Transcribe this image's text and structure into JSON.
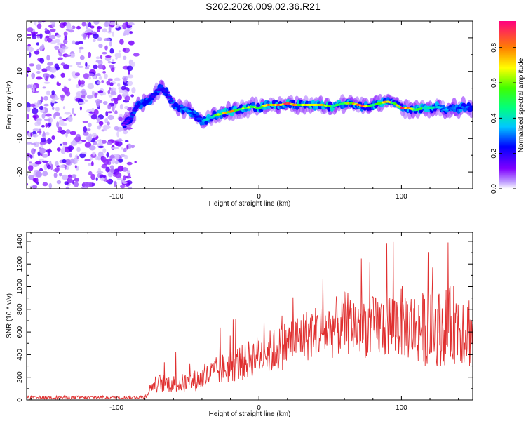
{
  "title": "S202.2026.009.02.36.R21",
  "chart_data": [
    {
      "type": "heatmap",
      "xlabel": "Height of straight line (km)",
      "ylabel": "Frequency (Hz)",
      "xlim": [
        -163,
        150
      ],
      "ylim": [
        -25,
        25
      ],
      "xticks": [
        -100,
        0,
        100
      ],
      "xtick_labels": [
        "-100",
        "0",
        "100"
      ],
      "yticks": [
        20,
        10,
        0,
        -10,
        -20
      ],
      "ytick_labels": [
        "20",
        "10",
        "0",
        "-10",
        "-20"
      ],
      "colorbar": {
        "label": "Normalized spectral amplitude",
        "range": [
          0,
          0.95
        ],
        "ticks": [
          0,
          0.2,
          0.4,
          0.6,
          0.8
        ],
        "tick_labels": [
          "0.0",
          "0.2",
          "0.4",
          "0.6",
          "0.8"
        ]
      },
      "ridge": {
        "x": [
          -95,
          -90,
          -85,
          -80,
          -75,
          -70,
          -65,
          -60,
          -55,
          -50,
          -45,
          -40,
          -35,
          -30,
          -25,
          -20,
          -15,
          -10,
          -5,
          0,
          5,
          10,
          15,
          20,
          25,
          30,
          35,
          40,
          45,
          50,
          55,
          60,
          65,
          70,
          75,
          80,
          85,
          90,
          95,
          100,
          105,
          110,
          115,
          120,
          125,
          130,
          135,
          140,
          145,
          150
        ],
        "freq": [
          -6,
          -4,
          0,
          0.5,
          2,
          5,
          4,
          0,
          -1,
          -1.5,
          -3,
          -5,
          -4,
          -3,
          -2.5,
          -2,
          -1.5,
          -1,
          -0.5,
          -1,
          0,
          0,
          0,
          0.5,
          0,
          0,
          0,
          0,
          0,
          -0.5,
          0,
          0.5,
          0.5,
          0,
          -0.5,
          0,
          0.5,
          1,
          0.5,
          -1,
          -1,
          -1.5,
          -1,
          -1,
          -0.5,
          -1.5,
          -1,
          -1,
          -0.5,
          -1
        ],
        "amp": [
          0.1,
          0.2,
          0.3,
          0.25,
          0.25,
          0.25,
          0.2,
          0.25,
          0.3,
          0.35,
          0.3,
          0.3,
          0.45,
          0.6,
          0.7,
          0.8,
          0.7,
          0.65,
          0.7,
          0.6,
          0.85,
          0.9,
          0.85,
          0.9,
          0.8,
          0.75,
          0.85,
          0.9,
          0.7,
          0.6,
          0.55,
          0.65,
          0.8,
          0.9,
          0.85,
          0.6,
          0.65,
          0.8,
          0.6,
          0.9,
          0.85,
          0.5,
          0.55,
          0.45,
          0.4,
          0.35,
          0.3,
          0.35,
          0.3,
          0.3
        ]
      },
      "noise_region_x": [
        -163,
        -85
      ]
    },
    {
      "type": "line",
      "xlabel": "Height of straight line (km)",
      "ylabel": "SNR (10 * v/v)",
      "xlim": [
        -163,
        150
      ],
      "ylim": [
        0,
        1480
      ],
      "xticks": [
        -100,
        0,
        100
      ],
      "xtick_labels": [
        "-100",
        "0",
        "100"
      ],
      "yticks": [
        0,
        200,
        400,
        600,
        800,
        1000,
        1200,
        1400
      ],
      "ytick_labels": [
        "0",
        "200",
        "400",
        "600",
        "800",
        "1000",
        "1200",
        "1400"
      ],
      "color": "#e03030",
      "envelope": {
        "x": [
          -163,
          -140,
          -120,
          -100,
          -90,
          -85,
          -80,
          -75,
          -70,
          -60,
          -50,
          -40,
          -30,
          -20,
          -10,
          0,
          10,
          20,
          30,
          40,
          50,
          60,
          70,
          80,
          90,
          100,
          110,
          120,
          130,
          140,
          150
        ],
        "mean": [
          20,
          22,
          22,
          22,
          22,
          25,
          25,
          130,
          150,
          140,
          150,
          190,
          250,
          300,
          340,
          400,
          430,
          500,
          560,
          600,
          620,
          680,
          660,
          640,
          660,
          690,
          640,
          620,
          640,
          680,
          600
        ],
        "spread": [
          15,
          15,
          15,
          15,
          15,
          15,
          15,
          60,
          80,
          80,
          90,
          100,
          130,
          150,
          170,
          180,
          200,
          220,
          230,
          240,
          260,
          280,
          280,
          280,
          300,
          320,
          320,
          330,
          340,
          360,
          340
        ]
      }
    }
  ]
}
